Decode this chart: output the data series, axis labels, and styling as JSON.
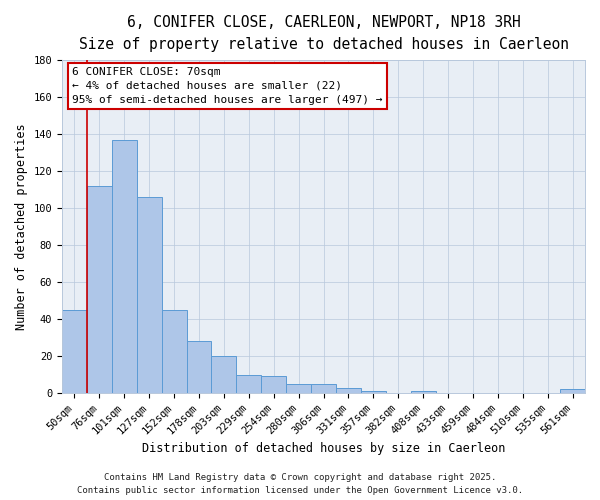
{
  "title": "6, CONIFER CLOSE, CAERLEON, NEWPORT, NP18 3RH",
  "subtitle": "Size of property relative to detached houses in Caerleon",
  "xlabel": "Distribution of detached houses by size in Caerleon",
  "ylabel": "Number of detached properties",
  "categories": [
    "50sqm",
    "76sqm",
    "101sqm",
    "127sqm",
    "152sqm",
    "178sqm",
    "203sqm",
    "229sqm",
    "254sqm",
    "280sqm",
    "306sqm",
    "331sqm",
    "357sqm",
    "382sqm",
    "408sqm",
    "433sqm",
    "459sqm",
    "484sqm",
    "510sqm",
    "535sqm",
    "561sqm"
  ],
  "values": [
    45,
    112,
    137,
    106,
    45,
    28,
    20,
    10,
    9,
    5,
    5,
    3,
    1,
    0,
    1,
    0,
    0,
    0,
    0,
    0,
    2
  ],
  "bar_color": "#aec6e8",
  "bar_edge_color": "#5b9bd5",
  "ylim": [
    0,
    180
  ],
  "yticks": [
    0,
    20,
    40,
    60,
    80,
    100,
    120,
    140,
    160,
    180
  ],
  "vline_x": 0.5,
  "vline_color": "#cc0000",
  "annotation_title": "6 CONIFER CLOSE: 70sqm",
  "annotation_line1": "← 4% of detached houses are smaller (22)",
  "annotation_line2": "95% of semi-detached houses are larger (497) →",
  "annotation_box_color": "#cc0000",
  "background_color": "#e8eef5",
  "footer_line1": "Contains HM Land Registry data © Crown copyright and database right 2025.",
  "footer_line2": "Contains public sector information licensed under the Open Government Licence v3.0.",
  "title_fontsize": 10.5,
  "subtitle_fontsize": 9,
  "axis_label_fontsize": 8.5,
  "tick_fontsize": 7.5,
  "annotation_title_fontsize": 8.5,
  "annotation_fontsize": 8,
  "footer_fontsize": 6.5
}
